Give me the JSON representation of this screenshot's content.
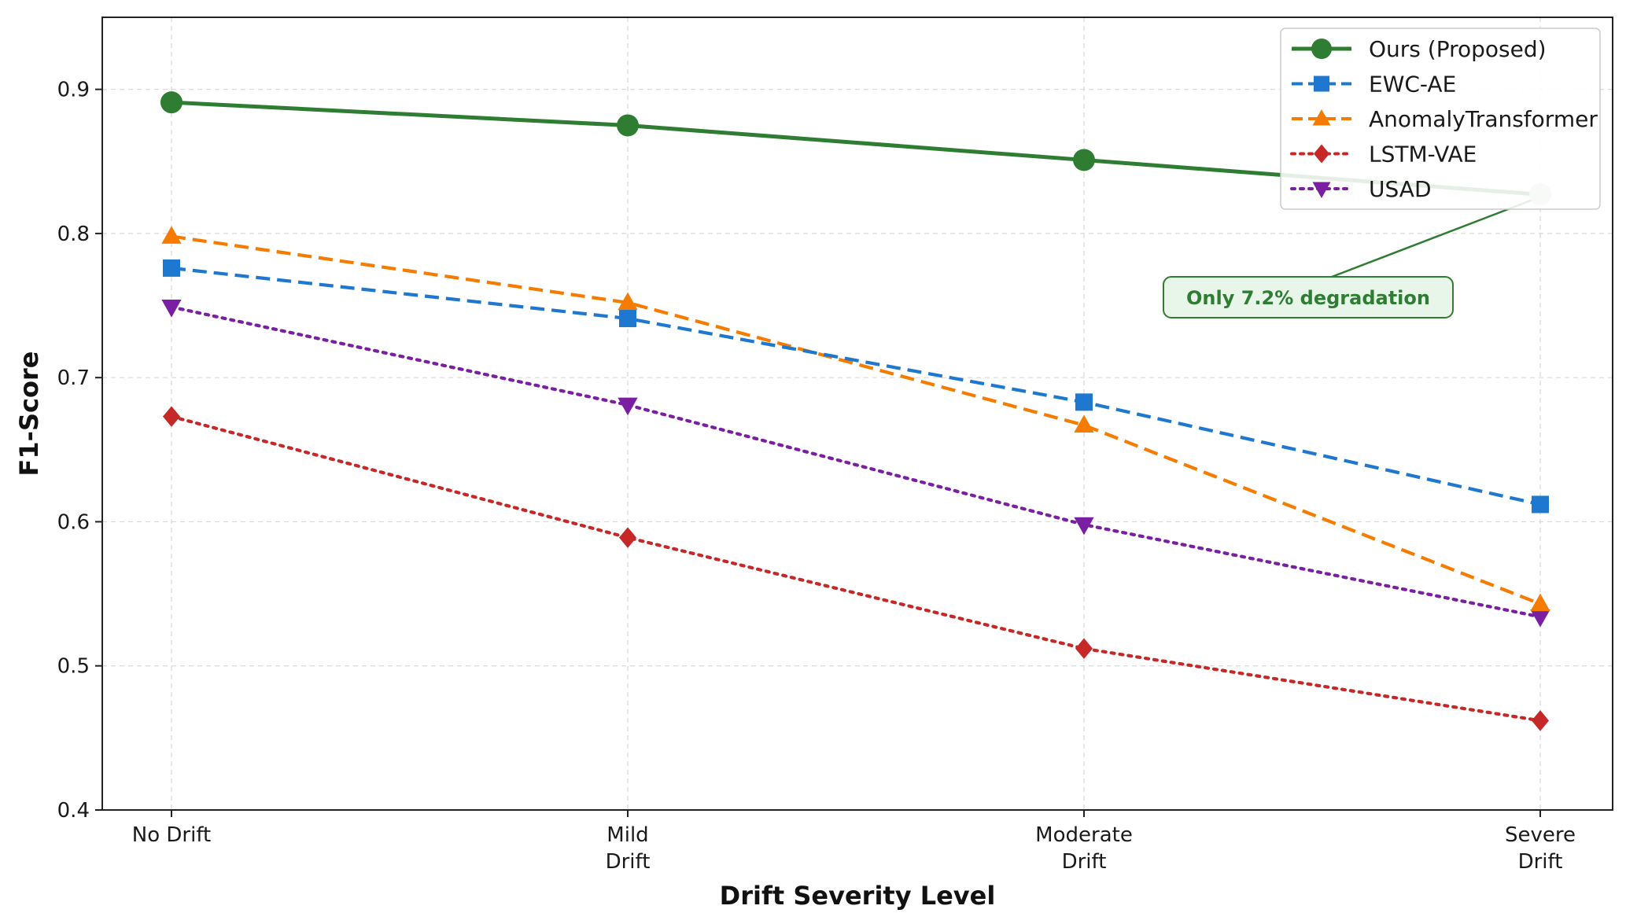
{
  "chart_data": {
    "type": "line",
    "title": "",
    "xlabel": "Drift Severity Level",
    "ylabel": "F1-Score",
    "categories": [
      [
        "No Drift"
      ],
      [
        "Mild",
        "Drift"
      ],
      [
        "Moderate",
        "Drift"
      ],
      [
        "Severe",
        "Drift"
      ]
    ],
    "ylim": [
      0.4,
      0.95
    ],
    "yticks": [
      "0.4",
      "0.5",
      "0.6",
      "0.7",
      "0.8",
      "0.9"
    ],
    "grid": true,
    "legend_position": "top-right",
    "series": [
      {
        "name": "Ours (Proposed)",
        "values": [
          0.891,
          0.875,
          0.851,
          0.827
        ],
        "color": "#2e7d32",
        "marker": "circle",
        "dash": "solid"
      },
      {
        "name": "EWC-AE",
        "values": [
          0.776,
          0.741,
          0.683,
          0.612
        ],
        "color": "#1e78d0",
        "marker": "square",
        "dash": "dashed"
      },
      {
        "name": "AnomalyTransformer",
        "values": [
          0.798,
          0.752,
          0.667,
          0.543
        ],
        "color": "#f57c00",
        "marker": "triangle-up",
        "dash": "dashed"
      },
      {
        "name": "LSTM-VAE",
        "values": [
          0.673,
          0.589,
          0.512,
          0.462
        ],
        "color": "#c62828",
        "marker": "diamond",
        "dash": "dotted"
      },
      {
        "name": "USAD",
        "values": [
          0.749,
          0.681,
          0.598,
          0.534
        ],
        "color": "#7b1fa2",
        "marker": "triangle-down",
        "dash": "dotted"
      }
    ],
    "annotations": [
      {
        "text": "Only 7.2% degradation",
        "series": "Ours (Proposed)",
        "category_index": 3
      }
    ]
  }
}
